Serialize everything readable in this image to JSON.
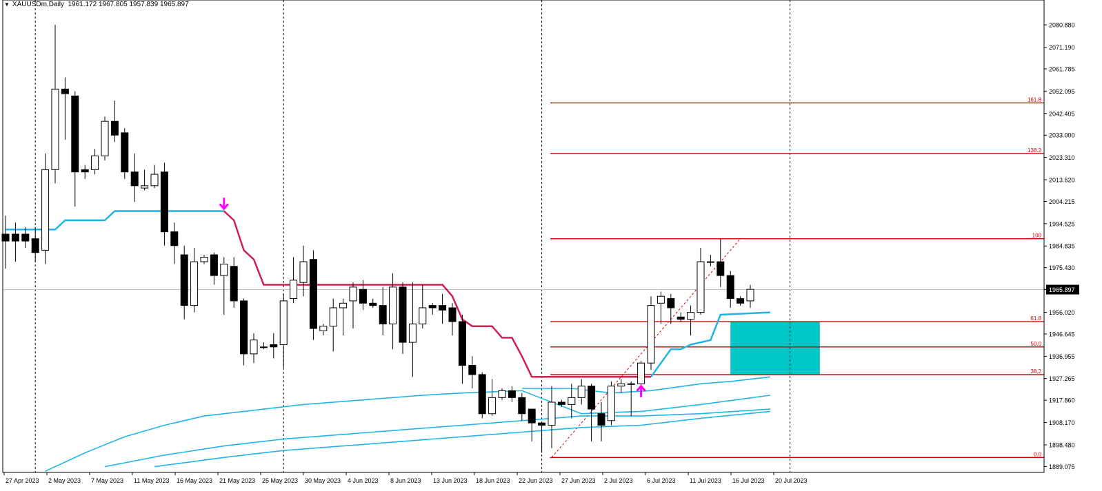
{
  "header": {
    "symbol": "XAUUSDm,Daily",
    "ohlc": "1961.172 1967.805 1957.839 1965.897",
    "dropdown_icon": "triangle-down-icon"
  },
  "chart_data": {
    "type": "candlestick",
    "symbol": "XAUUSDm",
    "timeframe": "Daily",
    "ylim": [
      1886.5,
      2087.5
    ],
    "y_ticks": [
      "2080.880",
      "2071.190",
      "2061.785",
      "2052.095",
      "2042.405",
      "2033.000",
      "2023.310",
      "2013.620",
      "2004.215",
      "1994.525",
      "1984.835",
      "1975.430",
      "1965.897",
      "1956.020",
      "1946.645",
      "1936.955",
      "1927.265",
      "1917.860",
      "1908.170",
      "1898.480",
      "1889.075"
    ],
    "current_price": "1965.897",
    "x_labels": [
      "27 Apr 2023",
      "2 May 2023",
      "7 May 2023",
      "11 May 2023",
      "16 May 2023",
      "21 May 2023",
      "25 May 2023",
      "30 May 2023",
      "4 Jun 2023",
      "8 Jun 2023",
      "13 Jun 2023",
      "18 Jun 2023",
      "22 Jun 2023",
      "27 Jun 2023",
      "2 Jul 2023",
      "6 Jul 2023",
      "11 Jul 2023",
      "16 Jul 2023",
      "20 Jul 2023"
    ],
    "candles": [
      {
        "o": 1990,
        "h": 1998,
        "l": 1975,
        "c": 1987
      },
      {
        "o": 1990,
        "h": 1995,
        "l": 1978,
        "c": 1987
      },
      {
        "o": 1990,
        "h": 1993,
        "l": 1984,
        "c": 1987
      },
      {
        "o": 1988,
        "h": 1993,
        "l": 1978,
        "c": 1982
      },
      {
        "o": 1983,
        "h": 2025,
        "l": 1977,
        "c": 2018
      },
      {
        "o": 2018,
        "h": 2081,
        "l": 2012,
        "c": 2053
      },
      {
        "o": 2053,
        "h": 2058,
        "l": 2031,
        "c": 2051
      },
      {
        "o": 2050,
        "h": 2052,
        "l": 2002,
        "c": 2017
      },
      {
        "o": 2018,
        "h": 2020,
        "l": 2014,
        "c": 2017
      },
      {
        "o": 2018,
        "h": 2027,
        "l": 2016,
        "c": 2024
      },
      {
        "o": 2024,
        "h": 2041,
        "l": 2022,
        "c": 2039
      },
      {
        "o": 2039,
        "h": 2048,
        "l": 2030,
        "c": 2033
      },
      {
        "o": 2034,
        "h": 2036,
        "l": 2014,
        "c": 2017
      },
      {
        "o": 2017,
        "h": 2025,
        "l": 2004,
        "c": 2011
      },
      {
        "o": 2010,
        "h": 2018,
        "l": 2009,
        "c": 2011
      },
      {
        "o": 2011,
        "h": 2020,
        "l": 2010,
        "c": 2016
      },
      {
        "o": 2017,
        "h": 2021,
        "l": 1985,
        "c": 1991
      },
      {
        "o": 1991,
        "h": 1995,
        "l": 1977,
        "c": 1985
      },
      {
        "o": 1981,
        "h": 1985,
        "l": 1953,
        "c": 1959
      },
      {
        "o": 1959,
        "h": 1984,
        "l": 1956,
        "c": 1978
      },
      {
        "o": 1978,
        "h": 1981,
        "l": 1977,
        "c": 1980
      },
      {
        "o": 1981,
        "h": 1982,
        "l": 1968,
        "c": 1972
      },
      {
        "o": 1972,
        "h": 1980,
        "l": 1955,
        "c": 1977
      },
      {
        "o": 1976,
        "h": 1980,
        "l": 1958,
        "c": 1961
      },
      {
        "o": 1961,
        "h": 1962,
        "l": 1933,
        "c": 1938
      },
      {
        "o": 1938,
        "h": 1947,
        "l": 1934,
        "c": 1944
      },
      {
        "o": 1941,
        "h": 1943,
        "l": 1940,
        "c": 1941
      },
      {
        "o": 1942,
        "h": 1947,
        "l": 1936,
        "c": 1941
      },
      {
        "o": 1942,
        "h": 1964,
        "l": 1932,
        "c": 1961
      },
      {
        "o": 1962,
        "h": 1980,
        "l": 1960,
        "c": 1970
      },
      {
        "o": 1969,
        "h": 1985,
        "l": 1963,
        "c": 1978
      },
      {
        "o": 1979,
        "h": 1983,
        "l": 1944,
        "c": 1949
      },
      {
        "o": 1948,
        "h": 1951,
        "l": 1946,
        "c": 1950
      },
      {
        "o": 1950,
        "h": 1962,
        "l": 1939,
        "c": 1958
      },
      {
        "o": 1958,
        "h": 1962,
        "l": 1946,
        "c": 1960
      },
      {
        "o": 1961,
        "h": 1969,
        "l": 1949,
        "c": 1967
      },
      {
        "o": 1966,
        "h": 1970,
        "l": 1957,
        "c": 1960
      },
      {
        "o": 1960,
        "h": 1962,
        "l": 1958,
        "c": 1959
      },
      {
        "o": 1959,
        "h": 1967,
        "l": 1946,
        "c": 1951
      },
      {
        "o": 1951,
        "h": 1973,
        "l": 1940,
        "c": 1967
      },
      {
        "o": 1967,
        "h": 1969,
        "l": 1938,
        "c": 1943
      },
      {
        "o": 1943,
        "h": 1969,
        "l": 1928,
        "c": 1951
      },
      {
        "o": 1951,
        "h": 1968,
        "l": 1949,
        "c": 1958
      },
      {
        "o": 1959,
        "h": 1960,
        "l": 1955,
        "c": 1958
      },
      {
        "o": 1959,
        "h": 1964,
        "l": 1951,
        "c": 1957
      },
      {
        "o": 1958,
        "h": 1960,
        "l": 1946,
        "c": 1952
      },
      {
        "o": 1952,
        "h": 1955,
        "l": 1925,
        "c": 1933
      },
      {
        "o": 1933,
        "h": 1937,
        "l": 1923,
        "c": 1929
      },
      {
        "o": 1929,
        "h": 1930,
        "l": 1910,
        "c": 1912
      },
      {
        "o": 1912,
        "h": 1927,
        "l": 1911,
        "c": 1919
      },
      {
        "o": 1919,
        "h": 1923,
        "l": 1918,
        "c": 1922
      },
      {
        "o": 1922,
        "h": 1924,
        "l": 1917,
        "c": 1919
      },
      {
        "o": 1919,
        "h": 1921,
        "l": 1909,
        "c": 1912
      },
      {
        "o": 1914,
        "h": 1914,
        "l": 1900,
        "c": 1908
      },
      {
        "o": 1908,
        "h": 1908,
        "l": 1895,
        "c": 1907
      },
      {
        "o": 1907,
        "h": 1924,
        "l": 1897,
        "c": 1917
      },
      {
        "o": 1917,
        "h": 1918,
        "l": 1915,
        "c": 1916
      },
      {
        "o": 1916,
        "h": 1925,
        "l": 1910,
        "c": 1919
      },
      {
        "o": 1919,
        "h": 1927,
        "l": 1916,
        "c": 1924
      },
      {
        "o": 1924,
        "h": 1925,
        "l": 1900,
        "c": 1914
      },
      {
        "o": 1912,
        "h": 1917,
        "l": 1900,
        "c": 1907
      },
      {
        "o": 1909,
        "h": 1926,
        "l": 1907,
        "c": 1924
      },
      {
        "o": 1924,
        "h": 1927,
        "l": 1921,
        "c": 1925
      },
      {
        "o": 1925,
        "h": 1926,
        "l": 1911,
        "c": 1925
      },
      {
        "o": 1925,
        "h": 1935,
        "l": 1924,
        "c": 1934
      },
      {
        "o": 1934,
        "h": 1963,
        "l": 1931,
        "c": 1959
      },
      {
        "o": 1960,
        "h": 1965,
        "l": 1951,
        "c": 1963
      },
      {
        "o": 1962,
        "h": 1964,
        "l": 1951,
        "c": 1958
      },
      {
        "o": 1954,
        "h": 1956,
        "l": 1952,
        "c": 1953
      },
      {
        "o": 1953,
        "h": 1959,
        "l": 1946,
        "c": 1956
      },
      {
        "o": 1956,
        "h": 1984,
        "l": 1955,
        "c": 1978
      },
      {
        "o": 1978,
        "h": 1981,
        "l": 1976,
        "c": 1978
      },
      {
        "o": 1978,
        "h": 1988,
        "l": 1967,
        "c": 1972
      },
      {
        "o": 1972,
        "h": 1974,
        "l": 1958,
        "c": 1962
      },
      {
        "o": 1962,
        "h": 1963,
        "l": 1959,
        "c": 1960
      },
      {
        "o": 1961,
        "h": 1968,
        "l": 1958,
        "c": 1966
      }
    ],
    "trend_line_blue": [
      [
        0,
        1992
      ],
      [
        5,
        1992
      ],
      [
        6,
        1996
      ],
      [
        10,
        1996
      ],
      [
        11,
        2000
      ],
      [
        22,
        2000
      ]
    ],
    "trend_line_red": [
      [
        22,
        2000
      ],
      [
        23,
        1996
      ],
      [
        24,
        1983
      ],
      [
        25,
        1979
      ],
      [
        26,
        1968
      ],
      [
        44,
        1968
      ],
      [
        45,
        1963
      ],
      [
        46,
        1953
      ],
      [
        47,
        1950
      ],
      [
        49,
        1950
      ],
      [
        50,
        1945
      ],
      [
        51,
        1945
      ],
      [
        52,
        1937
      ],
      [
        53,
        1928
      ],
      [
        65,
        1928
      ]
    ],
    "trend_line_blue_2": [
      [
        65,
        1928
      ],
      [
        66,
        1934
      ],
      [
        67,
        1940
      ],
      [
        68,
        1940
      ],
      [
        69,
        1942
      ],
      [
        71,
        1944
      ],
      [
        72,
        1955
      ],
      [
        77,
        1956
      ]
    ],
    "ma_lines": [
      {
        "name": "",
        "color": "#1EB4E6",
        "points": [
          [
            52,
            1923
          ],
          [
            57,
            1923
          ],
          [
            61,
            1921
          ],
          [
            65,
            1922
          ],
          [
            70,
            1925
          ],
          [
            73,
            1926
          ],
          [
            77,
            1928
          ]
        ]
      },
      {
        "name": "",
        "color": "#1EB4E6",
        "points": [
          [
            4,
            1887
          ],
          [
            8,
            1895
          ],
          [
            12,
            1902
          ],
          [
            16,
            1907
          ],
          [
            20,
            1911
          ],
          [
            24,
            1913
          ],
          [
            30,
            1916
          ],
          [
            36,
            1918
          ],
          [
            42,
            1920
          ],
          [
            46,
            1921
          ],
          [
            52,
            1922
          ],
          [
            58,
            1912
          ],
          [
            64,
            1913
          ],
          [
            70,
            1916
          ],
          [
            77,
            1920
          ]
        ]
      },
      {
        "name": "",
        "color": "#1EB4E6",
        "points": [
          [
            10,
            1889
          ],
          [
            16,
            1894
          ],
          [
            22,
            1898
          ],
          [
            28,
            1901
          ],
          [
            34,
            1903
          ],
          [
            40,
            1905
          ],
          [
            46,
            1907
          ],
          [
            52,
            1909
          ],
          [
            58,
            1911
          ],
          [
            64,
            1911
          ],
          [
            70,
            1912
          ],
          [
            77,
            1914
          ]
        ]
      },
      {
        "name": "",
        "color": "#1EB4E6",
        "points": [
          [
            15,
            1889
          ],
          [
            22,
            1893
          ],
          [
            28,
            1896
          ],
          [
            34,
            1898
          ],
          [
            40,
            1900
          ],
          [
            46,
            1902
          ],
          [
            52,
            1904
          ],
          [
            58,
            1906
          ],
          [
            64,
            1907
          ],
          [
            70,
            1910
          ],
          [
            77,
            1913
          ]
        ]
      }
    ],
    "fib_levels": [
      {
        "label": "161.8",
        "price": 2047
      },
      {
        "label": "138.2",
        "price": 2025
      },
      {
        "label": "100",
        "price": 1988
      },
      {
        "label": "61.8",
        "price": 1952
      },
      {
        "label": "50.0",
        "price": 1941
      },
      {
        "label": "38.2",
        "price": 1929
      },
      {
        "label": "0.0",
        "price": 1893
      }
    ],
    "fib_start_index": 55,
    "fib_diagonal": [
      [
        55,
        1893
      ],
      [
        74,
        1988
      ]
    ],
    "zone_box": {
      "from_index": 73,
      "to_index": 82,
      "top": 1952,
      "bottom": 1929,
      "color": "#00C8C8"
    },
    "arrows": [
      {
        "type": "down",
        "index": 22,
        "price": 2001,
        "color": "#FF00FF"
      },
      {
        "type": "up",
        "index": 64,
        "price": 1924,
        "color": "#FF00FF"
      }
    ],
    "period_separators": [
      3,
      28,
      54,
      79
    ],
    "colors": {
      "bull": "#ffffff",
      "bear": "#000000",
      "fib": "#CC0000",
      "grid_price": "#C0C0C0"
    },
    "grid": false,
    "legend": "none"
  }
}
